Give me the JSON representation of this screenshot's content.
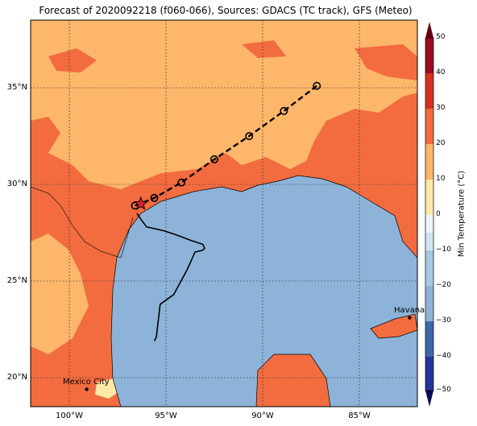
{
  "title": "Forecast of 2020092218 (f060-066), Sources: GDACS (TC track), GFS (Meteo)",
  "lat_ticks": [
    "35°N",
    "30°N",
    "25°N",
    "20°N"
  ],
  "lon_ticks": [
    "100°W",
    "95°W",
    "90°W",
    "85°W"
  ],
  "colorbar": {
    "label": "Min Temperature (°C)",
    "ticks": [
      "50",
      "40",
      "30",
      "20",
      "10",
      "0",
      "−10",
      "−20",
      "−30",
      "−40",
      "−50"
    ]
  },
  "cities": [
    {
      "name": "Havana"
    },
    {
      "name": "Mexico City"
    }
  ],
  "colors": {
    "warm_20_30": "#fdb66a",
    "hot_30_40": "#f26c3f",
    "water": "#8eb3d9",
    "pale": "#fee9a8"
  },
  "chart_data": {
    "type": "map",
    "title": "Forecast of 2020092218 (f060-066), Sources: GDACS (TC track), GFS (Meteo)",
    "lon_range": [
      -102,
      -82
    ],
    "lat_range": [
      18.5,
      38.5
    ],
    "grid": true,
    "track_observed": [
      {
        "lon": -95.6,
        "lat": 21.9
      },
      {
        "lon": -95.5,
        "lat": 22.1
      },
      {
        "lon": -95.3,
        "lat": 23.8
      },
      {
        "lon": -94.6,
        "lat": 24.3
      },
      {
        "lon": -93.9,
        "lat": 25.6
      },
      {
        "lon": -93.5,
        "lat": 26.5
      },
      {
        "lon": -93.1,
        "lat": 26.6
      },
      {
        "lon": -93.0,
        "lat": 26.7
      },
      {
        "lon": -93.1,
        "lat": 26.9
      },
      {
        "lon": -93.7,
        "lat": 27.1
      },
      {
        "lon": -94.5,
        "lat": 27.4
      },
      {
        "lon": -95.1,
        "lat": 27.6
      },
      {
        "lon": -96.0,
        "lat": 27.8
      },
      {
        "lon": -96.3,
        "lat": 28.2
      },
      {
        "lon": -96.5,
        "lat": 28.5
      }
    ],
    "track_forecast": [
      {
        "lon": -96.6,
        "lat": 28.9
      },
      {
        "lon": -95.6,
        "lat": 29.3
      },
      {
        "lon": -94.2,
        "lat": 30.1
      },
      {
        "lon": -92.5,
        "lat": 31.3
      },
      {
        "lon": -90.7,
        "lat": 32.5
      },
      {
        "lon": -88.9,
        "lat": 33.8
      },
      {
        "lon": -87.2,
        "lat": 35.1
      }
    ],
    "storm_position": {
      "lon": -96.3,
      "lat": 29.0
    },
    "cities": [
      {
        "name": "Havana",
        "lon": -82.4,
        "lat": 23.1
      },
      {
        "name": "Mexico City",
        "lon": -99.1,
        "lat": 19.4
      }
    ],
    "colorbar": {
      "label": "Min Temperature (°C)",
      "range": [
        -50,
        50
      ],
      "step": 5
    }
  }
}
